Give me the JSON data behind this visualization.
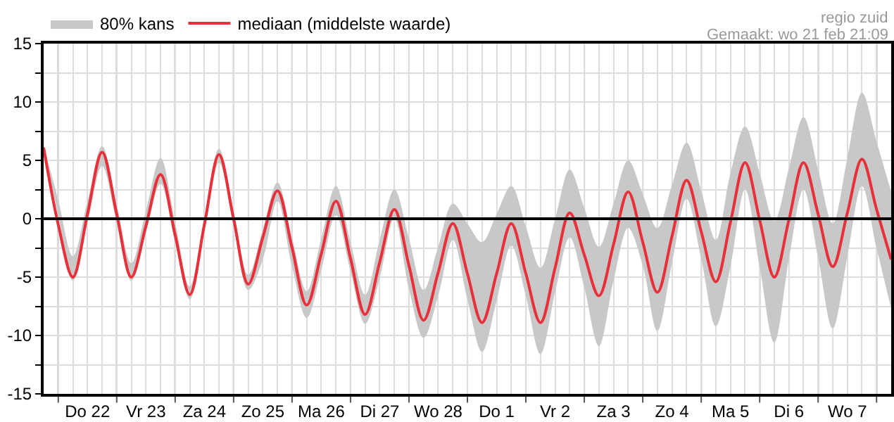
{
  "chart_data": {
    "type": "line",
    "categories": [
      null,
      null,
      null,
      "Do 22",
      null,
      null,
      null,
      "Vr 23",
      null,
      null,
      null,
      "Za 24",
      null,
      null,
      null,
      "Zo 25",
      null,
      null,
      null,
      "Ma 26",
      null,
      null,
      null,
      "Di 27",
      null,
      null,
      null,
      "Wo 28",
      null,
      null,
      null,
      "Do 1",
      null,
      null,
      null,
      "Vr 2",
      null,
      null,
      null,
      "Za 3",
      null,
      null,
      null,
      "Zo 4",
      null,
      null,
      null,
      "Ma 5",
      null,
      null,
      null,
      "Di 6",
      null,
      null,
      null,
      "Wo 7",
      null,
      null,
      null
    ],
    "series": [
      {
        "name": "80% kans",
        "type": "area",
        "color": "#c8c8c8",
        "values": [
          null,
          null,
          null,
          null,
          null,
          null,
          null,
          null,
          null,
          null,
          null,
          null,
          null,
          null,
          null,
          null,
          null,
          null,
          null,
          null,
          null,
          null,
          null,
          null,
          null,
          null,
          null,
          null,
          null,
          null,
          null,
          null,
          null,
          null,
          null,
          null,
          null,
          null,
          null,
          null,
          null,
          null,
          null,
          null,
          null,
          null,
          null,
          null,
          null,
          null,
          null,
          null,
          null,
          null,
          null,
          null,
          null,
          null,
          null
        ],
        "lower": [
          5.9,
          0.3,
          -5.3,
          -0.4,
          4.5,
          -0.4,
          -5.3,
          -1.2,
          3.0,
          -2.0,
          -6.9,
          -1.1,
          4.8,
          -0.7,
          -6.1,
          -3.5,
          1.5,
          -4.1,
          -8.5,
          -4.4,
          0.3,
          -4.5,
          -9.0,
          -5.1,
          0.0,
          -6.0,
          -10.2,
          -6.6,
          -1.8,
          -6.9,
          -11.4,
          -7.0,
          -2.3,
          -6.6,
          -11.6,
          -6.3,
          -1.6,
          -5.9,
          -10.9,
          -5.3,
          -0.8,
          -4.0,
          -9.6,
          -3.8,
          1.7,
          -3.4,
          -9.2,
          -4.1,
          2.5,
          -4.1,
          -10.6,
          -3.5,
          2.5,
          -3.3,
          -9.4,
          -3.3,
          2.8,
          -2.5,
          -7.7
        ],
        "upper": [
          6.3,
          1.6,
          -3.2,
          1.5,
          6.2,
          1.2,
          -3.8,
          0.7,
          5.2,
          -0.3,
          -5.8,
          0.1,
          6.0,
          0.6,
          -4.8,
          -0.9,
          3.1,
          -1.6,
          -6.2,
          -1.7,
          2.8,
          -2.0,
          -6.5,
          -1.8,
          2.5,
          -1.7,
          -6.1,
          -2.4,
          1.3,
          -0.4,
          -2.0,
          0.4,
          2.8,
          -0.7,
          -4.2,
          0,
          4.2,
          0.9,
          -2.4,
          1.3,
          5.0,
          2.1,
          -0.8,
          2.9,
          6.5,
          2.4,
          -1.8,
          3.9,
          7.9,
          3.9,
          -0.2,
          4.3,
          8.7,
          4.2,
          -0.4,
          5.2,
          10.8,
          6.6,
          2.3
        ]
      },
      {
        "name": "mediaan (middelste waarde)",
        "color": "#e8303a",
        "values": [
          6.1,
          -0.5,
          -5.0,
          0.4,
          5.7,
          0.4,
          -5.0,
          -0.6,
          3.8,
          -1.4,
          -6.5,
          -0.5,
          5.5,
          0.0,
          -5.6,
          -1.6,
          2.4,
          -2.5,
          -7.4,
          -3.0,
          1.5,
          -3.4,
          -8.2,
          -3.7,
          0.8,
          -4.0,
          -8.7,
          -4.6,
          -0.4,
          -4.7,
          -8.9,
          -4.7,
          -0.4,
          -4.7,
          -8.9,
          -4.2,
          0.5,
          -3.1,
          -6.6,
          -2.2,
          2.3,
          -2.0,
          -6.3,
          -1.5,
          3.3,
          -1.1,
          -5.4,
          -0.3,
          4.8,
          -0.1,
          -5.0,
          -0.1,
          4.8,
          0.4,
          -4.1,
          0.5,
          5.1,
          0.8,
          -3.5
        ]
      }
    ],
    "ylim": [
      -15,
      15
    ],
    "yticks": [
      -15,
      {
        "value": -12.5,
        "label": null
      },
      -10,
      {
        "value": -7.5,
        "label": null
      },
      -5,
      {
        "value": -2.5,
        "label": null
      },
      0,
      {
        "value": 2.5,
        "label": null
      },
      5,
      {
        "value": 7.5,
        "label": null
      },
      10,
      {
        "value": 12.5,
        "label": null
      },
      15
    ],
    "ref_lines": [
      {
        "axis": "y",
        "value": 0,
        "color": "#000000"
      }
    ],
    "annotations": [
      "regio zuid",
      "Gemaakt: wo 21 feb 21:09"
    ],
    "grid": true,
    "legend": "top left",
    "marker": "none",
    "line_style": "solid"
  }
}
